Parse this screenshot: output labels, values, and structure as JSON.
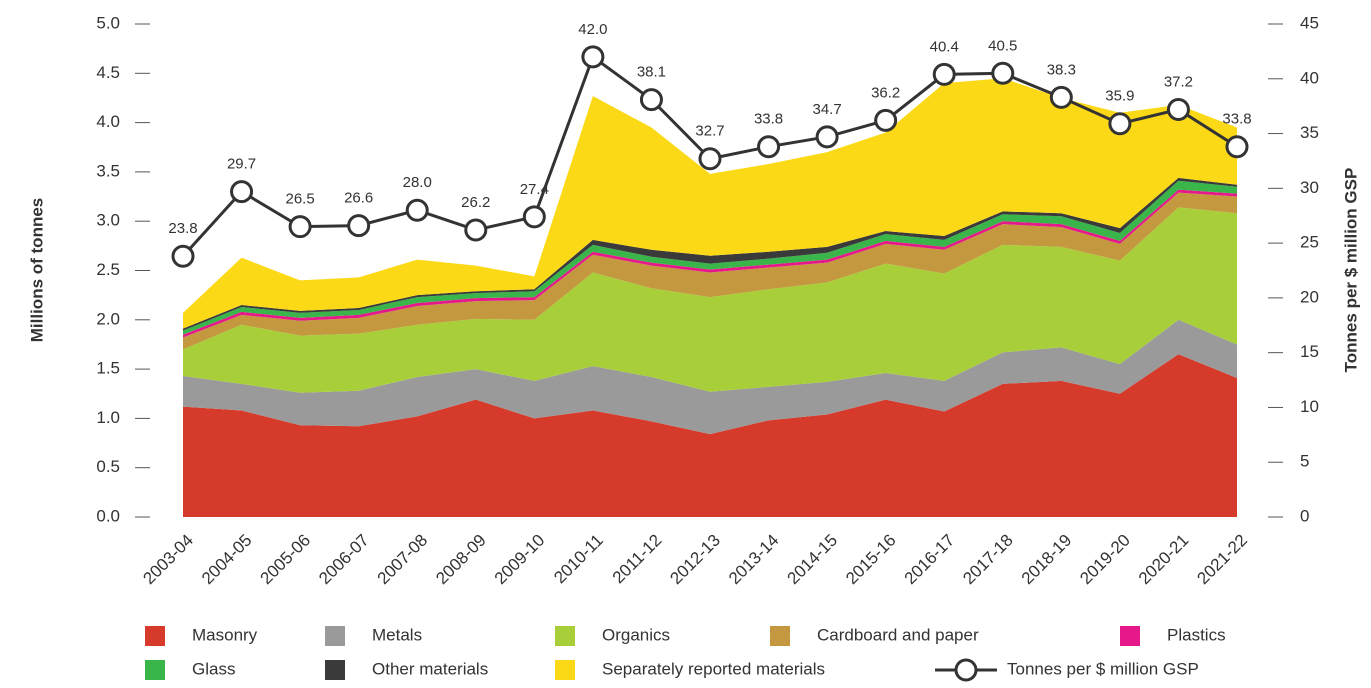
{
  "chart_data": {
    "type": "stacked_area_line",
    "y_label": "Millions of tonnes",
    "y2_label": "Tonnes per $ million GSP",
    "categories": [
      "2003-04",
      "2004-05",
      "2005-06",
      "2006-07",
      "2007-08",
      "2008-09",
      "2009-10",
      "2010-11",
      "2011-12",
      "2012-13",
      "2013-14",
      "2014-15",
      "2015-16",
      "2016-17",
      "2017-18",
      "2018-19",
      "2019-20",
      "2020-21",
      "2021-22"
    ],
    "series": [
      {
        "name": "Masonry",
        "color": "#d63a2a",
        "values": [
          1.12,
          1.08,
          0.93,
          0.92,
          1.02,
          1.19,
          1.0,
          1.08,
          0.97,
          0.84,
          0.98,
          1.04,
          1.19,
          1.07,
          1.35,
          1.38,
          1.25,
          1.65,
          1.41
        ]
      },
      {
        "name": "Metals",
        "color": "#9a9a9a",
        "values": [
          0.31,
          0.27,
          0.33,
          0.36,
          0.4,
          0.31,
          0.38,
          0.45,
          0.45,
          0.43,
          0.34,
          0.33,
          0.27,
          0.31,
          0.32,
          0.34,
          0.3,
          0.35,
          0.34
        ]
      },
      {
        "name": "Organics",
        "color": "#a8cf3a",
        "values": [
          0.27,
          0.6,
          0.58,
          0.58,
          0.53,
          0.51,
          0.62,
          0.95,
          0.9,
          0.96,
          0.99,
          1.01,
          1.11,
          1.09,
          1.09,
          1.02,
          1.05,
          1.14,
          1.33
        ]
      },
      {
        "name": "Cardboard and paper",
        "color": "#c4983e",
        "values": [
          0.12,
          0.1,
          0.15,
          0.16,
          0.19,
          0.18,
          0.2,
          0.18,
          0.23,
          0.25,
          0.22,
          0.2,
          0.2,
          0.24,
          0.21,
          0.2,
          0.17,
          0.15,
          0.17
        ]
      },
      {
        "name": "Plastics",
        "color": "#e5198a",
        "values": [
          0.03,
          0.03,
          0.03,
          0.03,
          0.03,
          0.03,
          0.03,
          0.03,
          0.03,
          0.03,
          0.03,
          0.03,
          0.03,
          0.03,
          0.03,
          0.03,
          0.03,
          0.03,
          0.03
        ]
      },
      {
        "name": "Glass",
        "color": "#3ab54a",
        "values": [
          0.04,
          0.05,
          0.05,
          0.05,
          0.06,
          0.05,
          0.06,
          0.07,
          0.06,
          0.06,
          0.06,
          0.07,
          0.07,
          0.07,
          0.07,
          0.08,
          0.08,
          0.09,
          0.07
        ]
      },
      {
        "name": "Other materials",
        "color": "#3a3a3a",
        "values": [
          0.02,
          0.02,
          0.02,
          0.02,
          0.02,
          0.02,
          0.02,
          0.05,
          0.07,
          0.08,
          0.07,
          0.06,
          0.03,
          0.04,
          0.03,
          0.03,
          0.05,
          0.03,
          0.02
        ]
      },
      {
        "name": "Separately reported materials",
        "color": "#fcd917",
        "values": [
          0.16,
          0.48,
          0.31,
          0.31,
          0.36,
          0.26,
          0.13,
          1.46,
          1.24,
          0.83,
          0.89,
          0.96,
          1.0,
          1.55,
          1.35,
          1.17,
          1.17,
          0.74,
          0.58
        ]
      },
      {
        "name": "Tonnes per $ million GSP",
        "color": "#333333",
        "axis": "y2",
        "values": [
          23.8,
          29.7,
          26.5,
          26.6,
          28.0,
          26.2,
          27.4,
          42.0,
          38.1,
          32.7,
          33.8,
          34.7,
          36.2,
          40.4,
          40.5,
          38.3,
          35.9,
          37.2,
          33.8
        ],
        "value_labels": [
          "23.8",
          "29.7",
          "26.5",
          "26.6",
          "28.0",
          "26.2",
          "27.4",
          "42.0",
          "38.1",
          "32.7",
          "33.8",
          "34.7",
          "36.2",
          "40.4",
          "40.5",
          "38.3",
          "35.9",
          "37.2",
          "33.8"
        ]
      }
    ],
    "ylim": [
      0,
      5
    ],
    "yticks": [
      {
        "value": 0,
        "label": "0.0"
      },
      {
        "value": 0.5,
        "label": "0.5"
      },
      {
        "value": 1,
        "label": "1.0"
      },
      {
        "value": 1.5,
        "label": "1.5"
      },
      {
        "value": 2,
        "label": "2.0"
      },
      {
        "value": 2.5,
        "label": "2.5"
      },
      {
        "value": 3,
        "label": "3.0"
      },
      {
        "value": 3.5,
        "label": "3.5"
      },
      {
        "value": 4,
        "label": "4.0"
      },
      {
        "value": 4.5,
        "label": "4.5"
      },
      {
        "value": 5,
        "label": "5.0"
      }
    ],
    "y2lim": [
      0,
      45
    ],
    "y2ticks": [
      0,
      5,
      10,
      15,
      20,
      25,
      30,
      35,
      40,
      45
    ]
  }
}
